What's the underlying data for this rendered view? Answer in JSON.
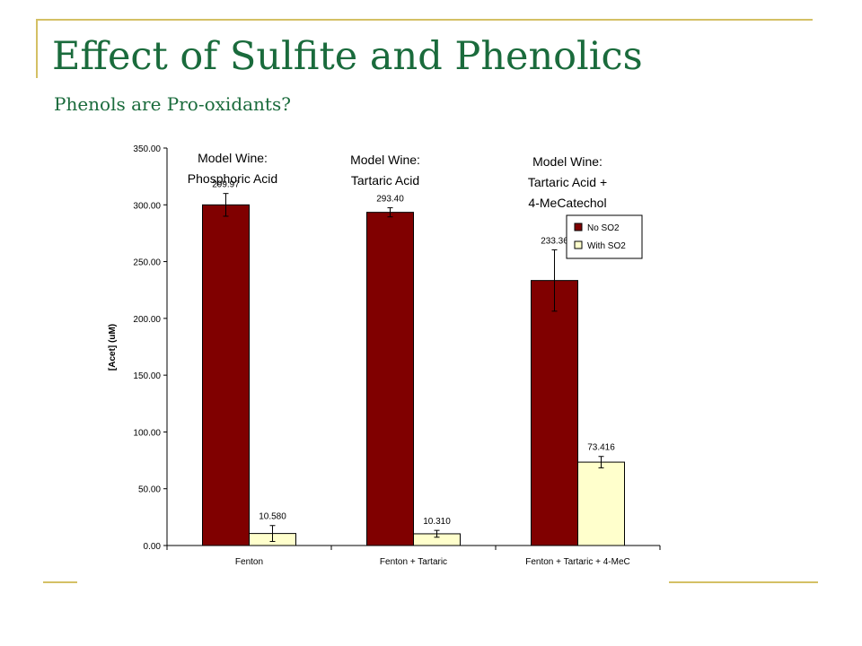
{
  "slide": {
    "title": "Effect of Sulfite and Phenolics",
    "subtitle": "Phenols are Pro-oxidants?"
  },
  "colors": {
    "accent_line": "#d4c065",
    "title": "#1a6b3c",
    "no_so2": "#800000",
    "with_so2": "#ffffcc"
  },
  "chart_data": {
    "type": "bar",
    "ylabel": "[Acet] (uM)",
    "ylim": [
      0,
      350
    ],
    "yticks": [
      "0.00",
      "50.00",
      "100.00",
      "150.00",
      "200.00",
      "250.00",
      "300.00",
      "350.00"
    ],
    "categories": [
      "Fenton",
      "Fenton + Tartaric",
      "Fenton + Tartaric + 4-MeC"
    ],
    "group_labels": [
      [
        "Model Wine:",
        "Phosphoric Acid"
      ],
      [
        "Model Wine:",
        "Tartaric Acid"
      ],
      [
        "Model Wine:",
        "Tartaric Acid +",
        "4-MeCatechol"
      ]
    ],
    "series": [
      {
        "name": "No SO2",
        "values": [
          299.97,
          293.4,
          233.36
        ],
        "labels": [
          "299.97",
          "293.40",
          "233.36"
        ],
        "errors": [
          10,
          4,
          27
        ],
        "color": "#800000"
      },
      {
        "name": "With SO2",
        "values": [
          10.58,
          10.31,
          73.416
        ],
        "labels": [
          "10.580",
          "10.310",
          "73.416"
        ],
        "errors": [
          7,
          3,
          5
        ],
        "color": "#ffffcc"
      }
    ],
    "grid": false,
    "legend": "top-right"
  }
}
